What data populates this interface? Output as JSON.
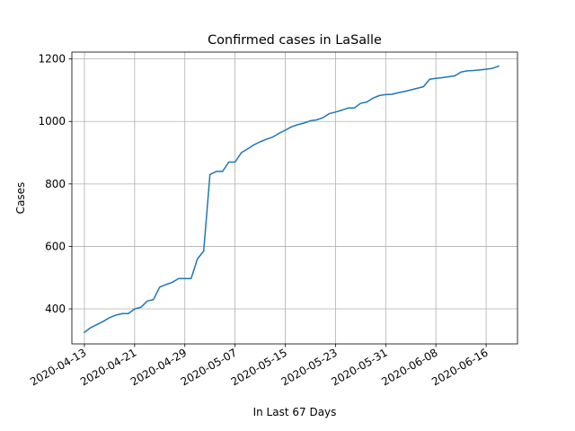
{
  "chart_data": {
    "type": "line",
    "title": "Confirmed cases in LaSalle",
    "xlabel": "In Last 67 Days",
    "ylabel": "Cases",
    "grid": true,
    "x_start": "2020-04-13",
    "xlim": [
      "2020-04-11",
      "2020-06-21"
    ],
    "ylim": [
      288,
      1222
    ],
    "x_ticks": [
      "2020-04-13",
      "2020-04-21",
      "2020-04-29",
      "2020-05-07",
      "2020-05-15",
      "2020-05-23",
      "2020-05-31",
      "2020-06-08",
      "2020-06-16"
    ],
    "y_ticks": [
      400,
      600,
      800,
      1000,
      1200
    ],
    "colors": {
      "series": "#1f77b4"
    },
    "series": [
      {
        "values": [
          325,
          340,
          350,
          360,
          372,
          380,
          385,
          385,
          400,
          405,
          425,
          430,
          470,
          478,
          485,
          497,
          497,
          497,
          560,
          585,
          830,
          840,
          840,
          870,
          870,
          900,
          912,
          925,
          935,
          943,
          950,
          962,
          972,
          983,
          990,
          995,
          1002,
          1005,
          1012,
          1025,
          1030,
          1036,
          1043,
          1043,
          1058,
          1062,
          1075,
          1083,
          1086,
          1087,
          1092,
          1096,
          1101,
          1106,
          1111,
          1135,
          1138,
          1140,
          1143,
          1146,
          1158,
          1162,
          1163,
          1165,
          1167,
          1170,
          1177
        ]
      }
    ]
  }
}
